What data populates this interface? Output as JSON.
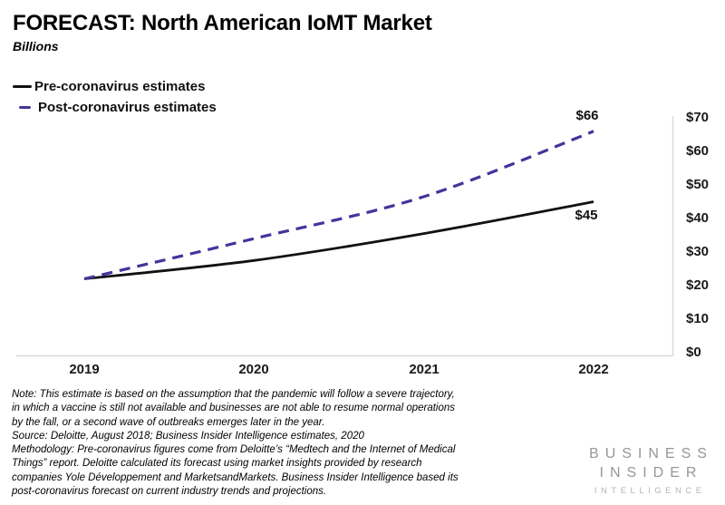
{
  "header": {
    "title": "FORECAST: North American IoMT Market",
    "subtitle": "Billions"
  },
  "legend": {
    "items": [
      {
        "label": "Pre-coronavirus estimates",
        "color": "#111111",
        "style": "solid"
      },
      {
        "label": "Post-coronavirus estimates",
        "color": "#44349b",
        "style": "dashed"
      }
    ]
  },
  "chart_data": {
    "type": "line",
    "title": "FORECAST: North American IoMT Market",
    "subtitle": "Billions",
    "unit": "USD billions",
    "categories": [
      "2019",
      "2020",
      "2021",
      "2022"
    ],
    "x_numeric": [
      2019,
      2020,
      2021,
      2022
    ],
    "series": [
      {
        "name": "Pre-coronavirus estimates",
        "color": "#111111",
        "style": "solid",
        "values": [
          22,
          27.5,
          35.5,
          45
        ],
        "end_label": "$45"
      },
      {
        "name": "Post-coronavirus estimates",
        "color": "#44349b",
        "style": "dashed",
        "values": [
          22,
          34,
          46.5,
          66
        ],
        "end_label": "$66"
      }
    ],
    "y_ticks": [
      "$70",
      "$60",
      "$50",
      "$40",
      "$30",
      "$20",
      "$10",
      "$0"
    ],
    "ylim": [
      0,
      70
    ],
    "grid": false,
    "axis_color": "#d9d9d9",
    "y_axis_side": "right",
    "legend_position": "top-left"
  },
  "footer": {
    "note_lines": [
      "Note: This estimate is based on the assumption that the pandemic will follow a severe trajectory,",
      "in which a vaccine is still not available and businesses are not able to resume normal operations",
      "by the fall, or a second wave of outbreaks emerges later in the year.",
      "Source: Deloitte, August 2018; Business Insider Intelligence estimates, 2020",
      "Methodology: Pre-coronavirus figures come from Deloitte’s “Medtech and the Internet of Medical",
      "Things” report. Deloitte calculated its forecast using market insights provided by research",
      "companies Yole Développement and MarketsandMarkets. Business Insider Intelligence based its",
      "post-coronavirus forecast on current industry trends and projections."
    ]
  },
  "logo": {
    "line1": "BUSINESS",
    "line2": "INSIDER",
    "line3": "INTELLIGENCE"
  }
}
